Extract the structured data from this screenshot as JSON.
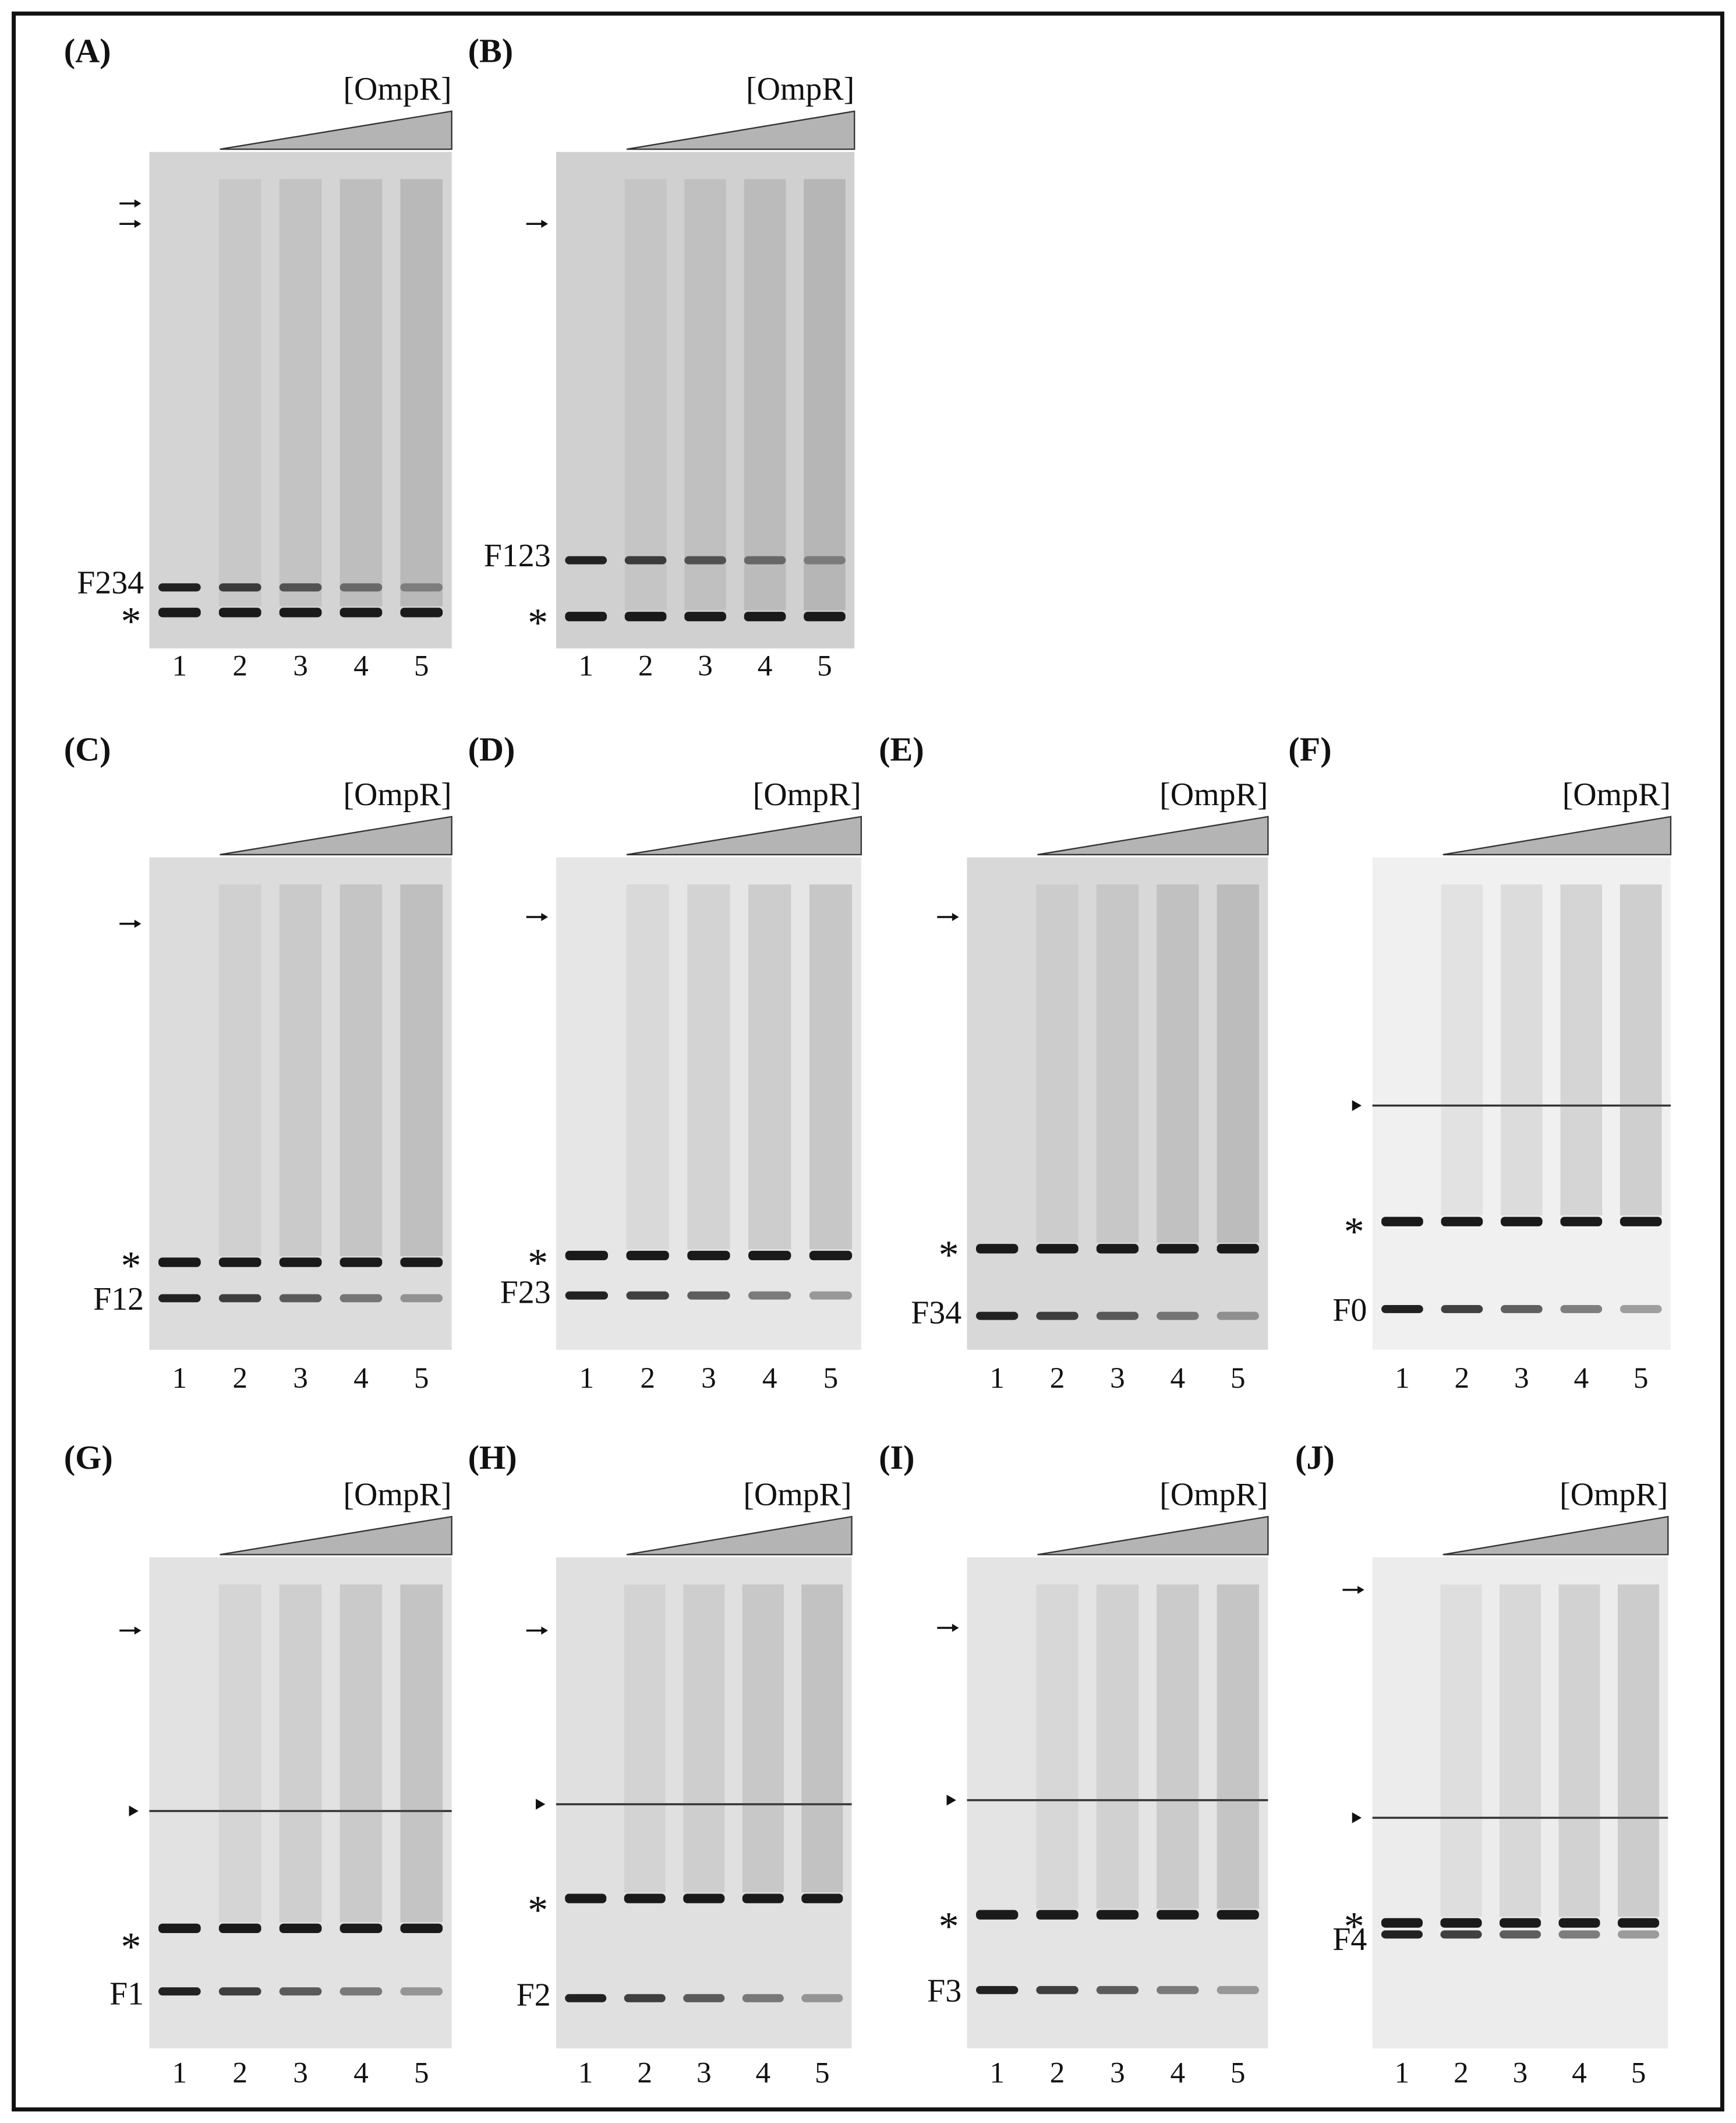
{
  "panels": [
    {
      "label": "(A)",
      "protein": "[OmpR]",
      "fragment": "F234",
      "marker": "*",
      "lanes": [
        "1",
        "2",
        "3",
        "4",
        "5"
      ]
    },
    {
      "label": "(B)",
      "protein": "[OmpR]",
      "fragment": "F123",
      "marker": "*",
      "lanes": [
        "1",
        "2",
        "3",
        "4",
        "5"
      ]
    },
    {
      "label": "(C)",
      "protein": "[OmpR]",
      "fragment": "F12",
      "marker": "*",
      "lanes": [
        "1",
        "2",
        "3",
        "4",
        "5"
      ]
    },
    {
      "label": "(D)",
      "protein": "[OmpR]",
      "fragment": "F23",
      "marker": "*",
      "lanes": [
        "1",
        "2",
        "3",
        "4",
        "5"
      ]
    },
    {
      "label": "(E)",
      "protein": "[OmpR]",
      "fragment": "F34",
      "marker": "*",
      "lanes": [
        "1",
        "2",
        "3",
        "4",
        "5"
      ]
    },
    {
      "label": "(F)",
      "protein": "[OmpR]",
      "fragment": "F0",
      "marker": "*",
      "lanes": [
        "1",
        "2",
        "3",
        "4",
        "5"
      ]
    },
    {
      "label": "(G)",
      "protein": "[OmpR]",
      "fragment": "F1",
      "marker": "*",
      "lanes": [
        "1",
        "2",
        "3",
        "4",
        "5"
      ]
    },
    {
      "label": "(H)",
      "protein": "[OmpR]",
      "fragment": "F2",
      "marker": "*",
      "lanes": [
        "1",
        "2",
        "3",
        "4",
        "5"
      ]
    },
    {
      "label": "(I)",
      "protein": "[OmpR]",
      "fragment": "F3",
      "marker": "*",
      "lanes": [
        "1",
        "2",
        "3",
        "4",
        "5"
      ]
    },
    {
      "label": "(J)",
      "protein": "[OmpR]",
      "fragment": "F4",
      "marker": "*",
      "lanes": [
        "1",
        "2",
        "3",
        "4",
        "5"
      ]
    }
  ]
}
